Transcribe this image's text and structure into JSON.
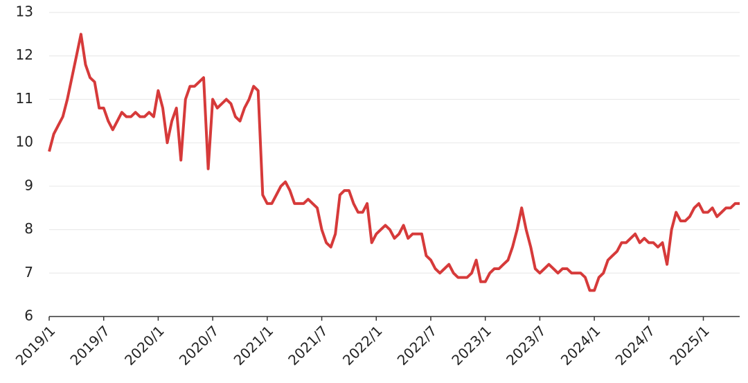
{
  "chart_data": {
    "type": "line",
    "categories": [
      "2019/1",
      null,
      null,
      null,
      null,
      null,
      null,
      null,
      null,
      null,
      null,
      null,
      "2019/7",
      null,
      null,
      null,
      null,
      null,
      null,
      null,
      null,
      null,
      null,
      null,
      "2020/1",
      null,
      null,
      null,
      null,
      null,
      null,
      null,
      null,
      null,
      null,
      null,
      "2020/7",
      null,
      null,
      null,
      null,
      null,
      null,
      null,
      null,
      null,
      null,
      null,
      "2021/1",
      null,
      null,
      null,
      null,
      null,
      null,
      null,
      null,
      null,
      null,
      null,
      "2021/7",
      null,
      null,
      null,
      null,
      null,
      null,
      null,
      null,
      null,
      null,
      null,
      "2022/1",
      null,
      null,
      null,
      null,
      null,
      null,
      null,
      null,
      null,
      null,
      null,
      "2022/7",
      null,
      null,
      null,
      null,
      null,
      null,
      null,
      null,
      null,
      null,
      null,
      "2023/1",
      null,
      null,
      null,
      null,
      null,
      null,
      null,
      null,
      null,
      null,
      null,
      "2023/7",
      null,
      null,
      null,
      null,
      null,
      null,
      null,
      null,
      null,
      null,
      null,
      "2024/1",
      null,
      null,
      null,
      null,
      null,
      null,
      null,
      null,
      null,
      null,
      null,
      "2024/7",
      null,
      null,
      null,
      null,
      null,
      null,
      null,
      null,
      null,
      null,
      null,
      "2025/1",
      null,
      null,
      null,
      null,
      null,
      null,
      null,
      null
    ],
    "values": [
      9.8,
      10.2,
      10.4,
      10.6,
      11.0,
      11.5,
      12.0,
      12.5,
      11.8,
      11.5,
      11.4,
      10.8,
      10.8,
      10.5,
      10.3,
      10.5,
      10.7,
      10.6,
      10.6,
      10.7,
      10.6,
      10.6,
      10.7,
      10.6,
      11.2,
      10.8,
      10.0,
      10.5,
      10.8,
      9.6,
      11.0,
      11.3,
      11.3,
      11.4,
      11.5,
      9.4,
      11.0,
      10.8,
      10.9,
      11.0,
      10.9,
      10.6,
      10.5,
      10.8,
      11.0,
      11.3,
      11.2,
      8.8,
      8.6,
      8.6,
      8.8,
      9.0,
      9.1,
      8.9,
      8.6,
      8.6,
      8.6,
      8.7,
      8.6,
      8.5,
      8.0,
      7.7,
      7.6,
      7.9,
      8.8,
      8.9,
      8.9,
      8.6,
      8.4,
      8.4,
      8.6,
      7.7,
      7.9,
      8.0,
      8.1,
      8.0,
      7.8,
      7.9,
      8.1,
      7.8,
      7.9,
      7.9,
      7.9,
      7.4,
      7.3,
      7.1,
      7.0,
      7.1,
      7.2,
      7.0,
      6.9,
      6.9,
      6.9,
      7.0,
      7.3,
      6.8,
      6.8,
      7.0,
      7.1,
      7.1,
      7.2,
      7.3,
      7.6,
      8.0,
      8.5,
      8.0,
      7.6,
      7.1,
      7.0,
      7.1,
      7.2,
      7.1,
      7.0,
      7.1,
      7.1,
      7.0,
      7.0,
      7.0,
      6.9,
      6.6,
      6.6,
      6.9,
      7.0,
      7.3,
      7.4,
      7.5,
      7.7,
      7.7,
      7.8,
      7.9,
      7.7,
      7.8,
      7.7,
      7.7,
      7.6,
      7.7,
      7.2,
      8.0,
      8.4,
      8.2,
      8.2,
      8.3,
      8.5,
      8.6,
      8.4,
      8.4,
      8.5,
      8.3,
      8.4,
      8.5,
      8.5,
      8.6,
      8.6
    ],
    "color": "#d63a3a",
    "ylim": [
      6,
      13
    ],
    "yticks": [
      6,
      7,
      8,
      9,
      10,
      11,
      12,
      13
    ],
    "grid": true
  }
}
